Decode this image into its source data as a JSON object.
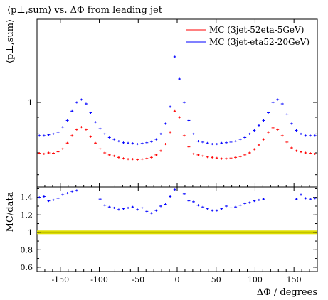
{
  "chart_data": {
    "type": "scatter",
    "title": "⟨p⊥,sum⟩ vs. ΔΦ from leading jet",
    "top_panel": {
      "ylabel": "⟨p⊥,sum⟩",
      "yscale": "log",
      "ylim": [
        0.55,
        1.8
      ],
      "yticks": [
        {
          "value": 1,
          "label": "1"
        }
      ],
      "series": [
        {
          "name": "MC (3jet-52eta-5GeV)",
          "color": "#ff0000",
          "x": [
            -177,
            -171,
            -165,
            -159,
            -153,
            -147,
            -141,
            -135,
            -129,
            -123,
            -117,
            -111,
            -105,
            -99,
            -93,
            -87,
            -81,
            -75,
            -69,
            -63,
            -57,
            -51,
            -45,
            -39,
            -33,
            -27,
            -21,
            -15,
            -9,
            -3,
            3,
            9,
            15,
            21,
            27,
            33,
            39,
            45,
            51,
            57,
            63,
            69,
            75,
            81,
            87,
            93,
            99,
            105,
            111,
            117,
            123,
            129,
            135,
            141,
            147,
            153,
            159,
            165,
            171,
            177
          ],
          "y": [
            0.698,
            0.695,
            0.7,
            0.698,
            0.705,
            0.72,
            0.75,
            0.79,
            0.825,
            0.84,
            0.825,
            0.785,
            0.75,
            0.72,
            0.7,
            0.69,
            0.685,
            0.678,
            0.673,
            0.67,
            0.67,
            0.668,
            0.67,
            0.673,
            0.678,
            0.69,
            0.71,
            0.745,
            0.81,
            0.94,
            0.9,
            0.79,
            0.73,
            0.695,
            0.69,
            0.685,
            0.68,
            0.678,
            0.675,
            0.672,
            0.672,
            0.675,
            0.678,
            0.682,
            0.69,
            0.7,
            0.718,
            0.74,
            0.77,
            0.81,
            0.835,
            0.825,
            0.79,
            0.755,
            0.725,
            0.71,
            0.705,
            0.7,
            0.698,
            0.695
          ]
        },
        {
          "name": "MC (3jet-eta52-20GeV)",
          "color": "#0000ff",
          "x": [
            -177,
            -171,
            -165,
            -159,
            -153,
            -147,
            -141,
            -135,
            -129,
            -123,
            -117,
            -111,
            -105,
            -99,
            -93,
            -87,
            -81,
            -75,
            -69,
            -63,
            -57,
            -51,
            -45,
            -39,
            -33,
            -27,
            -21,
            -15,
            -9,
            -3,
            3,
            9,
            15,
            21,
            27,
            33,
            39,
            45,
            51,
            57,
            63,
            69,
            75,
            81,
            87,
            93,
            99,
            105,
            111,
            117,
            123,
            129,
            135,
            141,
            147,
            153,
            159,
            165,
            171,
            177
          ],
          "y": [
            0.79,
            0.79,
            0.795,
            0.8,
            0.81,
            0.84,
            0.88,
            0.94,
            1.0,
            1.02,
            0.99,
            0.93,
            0.87,
            0.83,
            0.8,
            0.78,
            0.77,
            0.76,
            0.752,
            0.75,
            0.748,
            0.745,
            0.748,
            0.752,
            0.758,
            0.77,
            0.8,
            0.86,
            0.97,
            1.38,
            1.18,
            1.0,
            0.88,
            0.8,
            0.76,
            0.755,
            0.75,
            0.745,
            0.745,
            0.75,
            0.752,
            0.755,
            0.76,
            0.77,
            0.78,
            0.8,
            0.82,
            0.85,
            0.88,
            0.93,
            1.0,
            1.02,
            0.99,
            0.92,
            0.86,
            0.82,
            0.8,
            0.79,
            0.79,
            0.79
          ]
        }
      ]
    },
    "ratio_panel": {
      "ylabel": "MC/data",
      "ylim": [
        0.55,
        1.52
      ],
      "yticks": [
        0.6,
        0.8,
        1,
        1.2,
        1.4
      ],
      "reference_band": {
        "value": 1.0,
        "color": "#dddd00"
      },
      "series": [
        {
          "name": "MC (3jet-eta52-20GeV)",
          "color": "#0000ff",
          "x": [
            -177,
            -171,
            -165,
            -159,
            -153,
            -147,
            -141,
            -135,
            -129,
            -99,
            -93,
            -87,
            -81,
            -75,
            -69,
            -63,
            -57,
            -51,
            -45,
            -39,
            -33,
            -27,
            -21,
            -15,
            -9,
            -3,
            9,
            15,
            21,
            27,
            33,
            39,
            45,
            51,
            57,
            63,
            69,
            75,
            81,
            87,
            93,
            99,
            105,
            111,
            153,
            159,
            165,
            171,
            177
          ],
          "y": [
            1.4,
            1.41,
            1.36,
            1.37,
            1.39,
            1.43,
            1.45,
            1.47,
            1.48,
            1.38,
            1.31,
            1.29,
            1.28,
            1.26,
            1.27,
            1.28,
            1.29,
            1.26,
            1.28,
            1.24,
            1.22,
            1.25,
            1.3,
            1.32,
            1.41,
            1.49,
            1.44,
            1.36,
            1.35,
            1.31,
            1.29,
            1.27,
            1.25,
            1.25,
            1.27,
            1.3,
            1.28,
            1.29,
            1.31,
            1.33,
            1.34,
            1.36,
            1.37,
            1.38,
            1.38,
            1.43,
            1.39,
            1.38,
            1.39
          ]
        }
      ]
    },
    "x": {
      "xlabel": "ΔΦ / degrees",
      "xlim": [
        -180,
        180
      ],
      "xticks": [
        -150,
        -100,
        -50,
        0,
        50,
        100,
        150
      ],
      "xtick_labels": [
        "-150",
        "-100",
        "-50",
        "0",
        "50",
        "100",
        "150"
      ]
    },
    "legend": {
      "placement": "top-right"
    }
  }
}
